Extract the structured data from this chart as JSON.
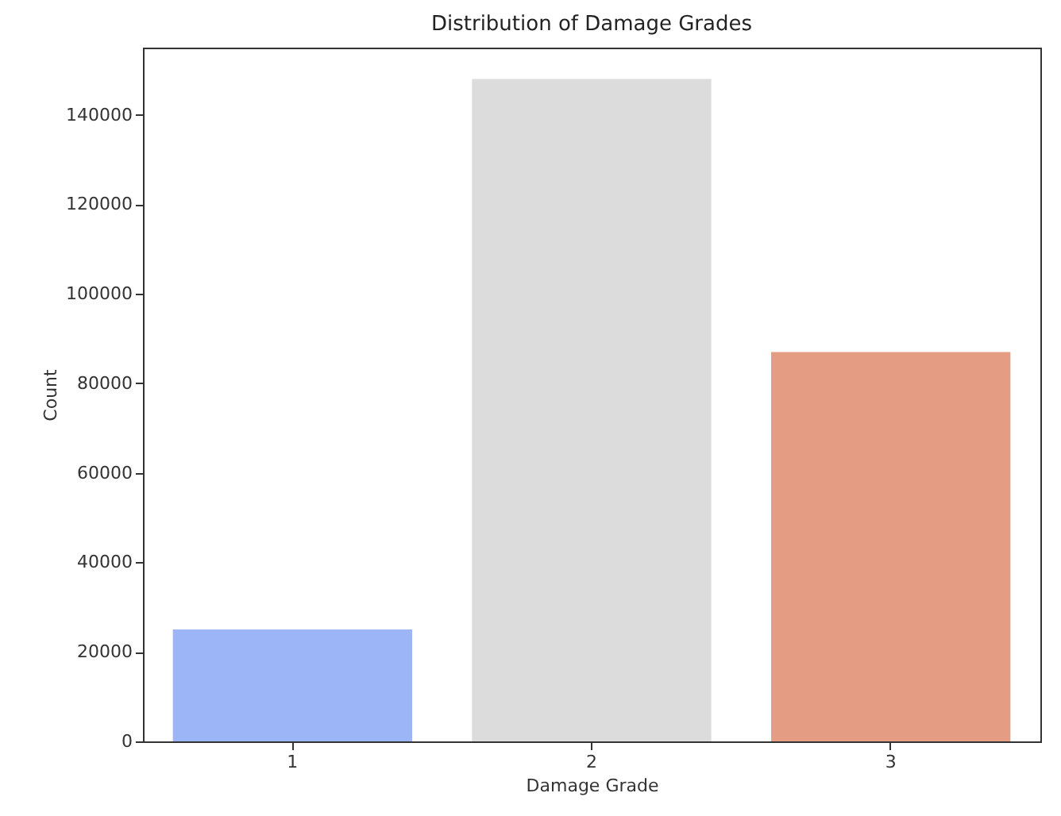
{
  "chart_data": {
    "type": "bar",
    "title": "Distribution of Damage Grades",
    "xlabel": "Damage Grade",
    "ylabel": "Count",
    "categories": [
      "1",
      "2",
      "3"
    ],
    "values": [
      25000,
      148000,
      87000
    ],
    "colors": [
      "#9bb5f7",
      "#dcdcdc",
      "#e49c82"
    ],
    "ylim": [
      0,
      155000
    ],
    "yticks": [
      0,
      20000,
      40000,
      60000,
      80000,
      100000,
      120000,
      140000
    ],
    "grid": false
  }
}
